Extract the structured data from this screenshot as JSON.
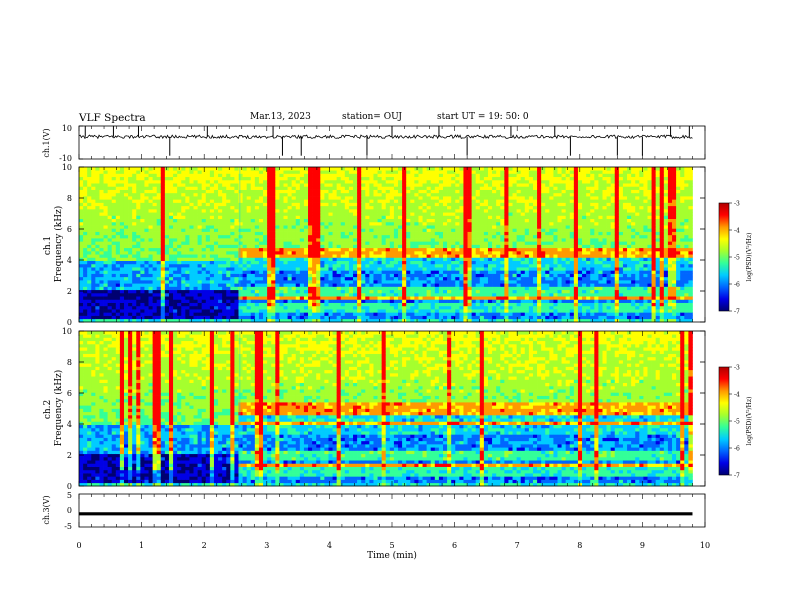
{
  "header": {
    "title": "VLF Spectra",
    "date": "Mar.13, 2023",
    "station": "station= OUJ",
    "start_time": "start  UT =   19: 50: 0"
  },
  "chart_data": [
    {
      "type": "line",
      "name": "ch1-waveform",
      "ylabel": "ch.1(V)",
      "ylim": [
        -10,
        10
      ],
      "y_tick_labels": [
        "10",
        "-10"
      ],
      "x_range_min": [
        0,
        9.8
      ],
      "baseline": 3.5,
      "noise_amplitude": 1.0,
      "spike_times_min": [
        0.1,
        0.55,
        0.95,
        1.45,
        2.05,
        3.1,
        3.25,
        3.55,
        4.6,
        5.0,
        5.75,
        6.2,
        6.9,
        7.6,
        7.85,
        8.6,
        9.0,
        9.45,
        9.75
      ]
    },
    {
      "type": "heatmap",
      "name": "ch1-spectrogram",
      "ylabel": "ch.1\nFrequency (kHz)",
      "ylabel_lines": [
        "ch.1",
        "Frequency (kHz)"
      ],
      "ylim": [
        0,
        10
      ],
      "y_ticks": [
        0,
        2,
        4,
        6,
        8,
        10
      ],
      "x_range_min": [
        0,
        9.8
      ],
      "regime_change_min": 2.57,
      "bands_before_khz": [
        [
          0.3,
          2.1
        ]
      ],
      "bands_after_khz": [
        [
          0.2,
          0.7
        ],
        [
          1.2,
          1.7
        ],
        [
          2.2,
          3.4
        ]
      ],
      "bright_lines_after_khz": [
        1.6,
        4.3,
        4.6
      ],
      "colorbar": {
        "label": "log(PSD)(V²/Hz)",
        "range": [
          -7,
          -3
        ],
        "ticks": [
          "-3",
          "-4",
          "-5",
          "-6",
          "-7"
        ]
      }
    },
    {
      "type": "heatmap",
      "name": "ch2-spectrogram",
      "ylabel": "ch.2\nFrequency (kHz)",
      "ylabel_lines": [
        "ch.2",
        "Frequency (kHz)"
      ],
      "ylim": [
        0,
        10
      ],
      "y_ticks": [
        0,
        2,
        4,
        6,
        8,
        10
      ],
      "x_range_min": [
        0,
        9.8
      ],
      "regime_change_min": 2.57,
      "bands_before_khz": [
        [
          0.3,
          2.1
        ]
      ],
      "bands_after_khz": [
        [
          0.2,
          0.7
        ],
        [
          1.4,
          1.7
        ],
        [
          2.2,
          3.4
        ]
      ],
      "bright_lines_after_khz": [
        1.4,
        4.1,
        4.8,
        5.2
      ],
      "colorbar": {
        "label": "log(PSD)(V²/Hz)",
        "range": [
          -7,
          -3
        ],
        "ticks": [
          "-3",
          "-4",
          "-5",
          "-6",
          "-7"
        ]
      }
    },
    {
      "type": "line",
      "name": "ch3-waveform",
      "ylabel": "ch.3(V)",
      "ylim": [
        -5,
        5
      ],
      "y_tick_labels": [
        "5",
        "0",
        "-5"
      ],
      "x": [
        0,
        9.8
      ],
      "y": [
        -1,
        -1
      ],
      "xlabel": "Time (min)",
      "xlim": [
        0,
        10
      ],
      "x_ticks": [
        "0",
        "1",
        "2",
        "3",
        "4",
        "5",
        "6",
        "7",
        "8",
        "9",
        "10"
      ]
    }
  ],
  "colors": {
    "jet_stops": [
      "#000070",
      "#0000e6",
      "#0066ff",
      "#00ccff",
      "#33ff99",
      "#a5ff2e",
      "#ffff00",
      "#ff9900",
      "#ff0000",
      "#b00000"
    ]
  }
}
